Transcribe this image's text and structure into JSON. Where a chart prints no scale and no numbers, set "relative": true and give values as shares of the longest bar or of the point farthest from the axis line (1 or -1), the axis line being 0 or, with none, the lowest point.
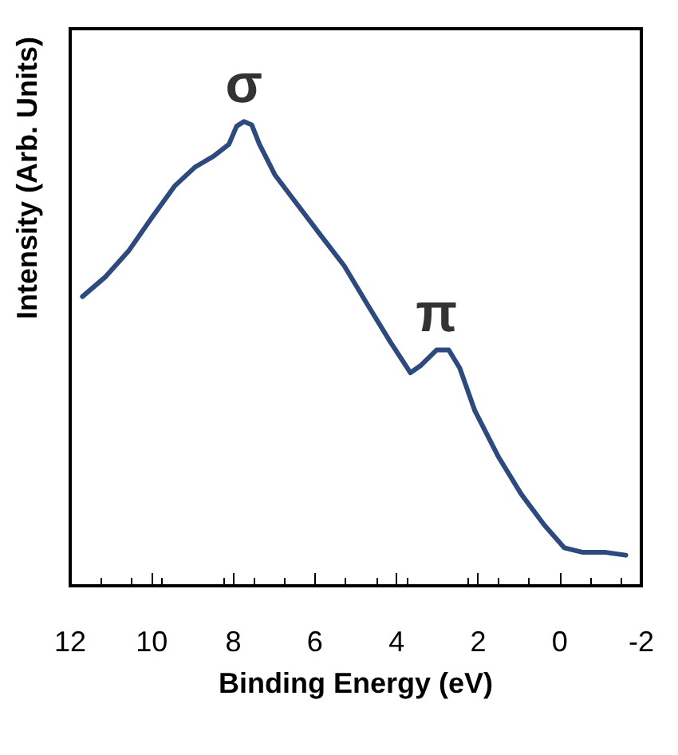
{
  "chart_data": {
    "type": "line",
    "xlabel": "Binding Energy (eV)",
    "ylabel": "Intensity (Arb. Units)",
    "relative": true,
    "xlim": [
      12,
      -2
    ],
    "xticks": [
      12,
      10,
      8,
      6,
      4,
      2,
      0,
      -2
    ],
    "series": [
      {
        "color": "#2c4a7e",
        "x": [
          11.7,
          11.13,
          10.57,
          10.0,
          9.43,
          8.94,
          8.49,
          8.11,
          7.92,
          7.74,
          7.55,
          7.36,
          6.98,
          6.42,
          5.85,
          5.28,
          4.72,
          4.15,
          3.66,
          3.4,
          3.02,
          2.72,
          2.45,
          2.08,
          1.51,
          0.94,
          0.38,
          -0.11,
          -0.57,
          -1.13,
          -1.62
        ],
        "values": [
          0.623,
          0.666,
          0.721,
          0.793,
          0.862,
          0.902,
          0.925,
          0.951,
          0.99,
          1.0,
          0.993,
          0.951,
          0.885,
          0.82,
          0.754,
          0.689,
          0.607,
          0.525,
          0.459,
          0.475,
          0.508,
          0.508,
          0.469,
          0.377,
          0.279,
          0.197,
          0.131,
          0.082,
          0.072,
          0.072,
          0.066
        ]
      }
    ],
    "annotations": [
      {
        "text": "σ",
        "x": 7.74,
        "y": 1.0
      },
      {
        "text": "π",
        "x": 3.02,
        "y": 0.508
      }
    ],
    "grid": false,
    "marker": "none",
    "line_style": "solid"
  }
}
